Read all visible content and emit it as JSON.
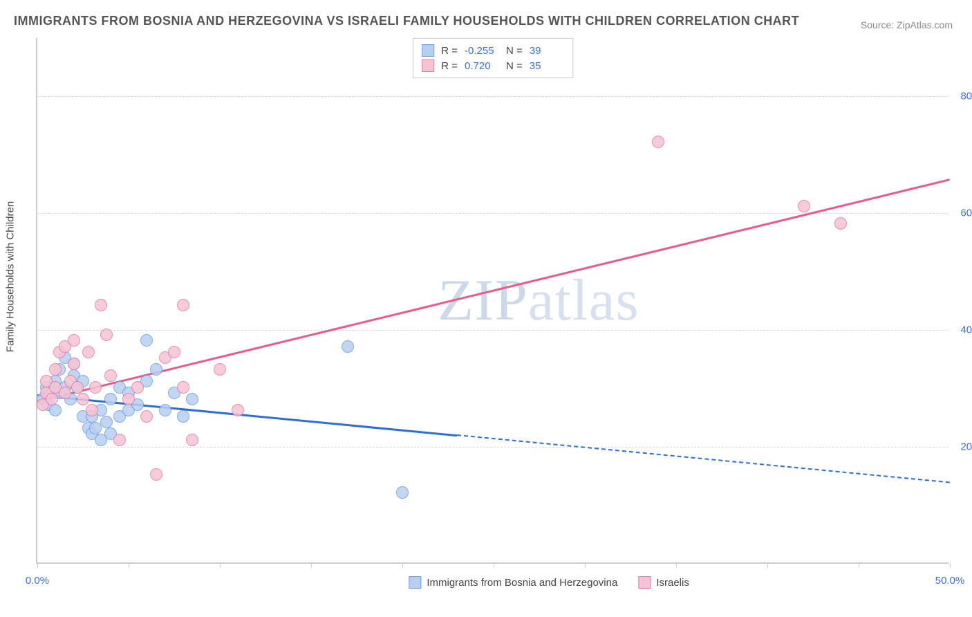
{
  "title": "IMMIGRANTS FROM BOSNIA AND HERZEGOVINA VS ISRAELI FAMILY HOUSEHOLDS WITH CHILDREN CORRELATION CHART",
  "source": "Source: ZipAtlas.com",
  "watermark_a": "ZIP",
  "watermark_b": "atlas",
  "ylabel": "Family Households with Children",
  "chart": {
    "type": "scatter",
    "xlim": [
      0,
      50
    ],
    "ylim": [
      0,
      90
    ],
    "background_color": "#ffffff",
    "grid_color": "#d8d8d8",
    "axis_color": "#cccccc",
    "tick_color": "#3b6fd6",
    "xticks": [
      0,
      5,
      10,
      15,
      20,
      25,
      30,
      35,
      40,
      45,
      50
    ],
    "xtick_labels": {
      "0": "0.0%",
      "50": "50.0%"
    },
    "yticks": [
      20,
      40,
      60,
      80
    ],
    "ytick_labels": {
      "20": "20.0%",
      "40": "40.0%",
      "60": "60.0%",
      "80": "80.0%"
    },
    "series": [
      {
        "key": "bosnia",
        "label": "Immigrants from Bosnia and Herzegovina",
        "R": "-0.255",
        "N": "39",
        "marker_fill": "#b8d0f0",
        "marker_stroke": "#6a9de8",
        "line_color": "#2e6cd6",
        "marker_size": 18,
        "trend": {
          "x1": 0,
          "y1": 29,
          "x2": 50,
          "y2": 14,
          "solid_until_x": 23
        },
        "points": [
          [
            0.3,
            28
          ],
          [
            0.5,
            30
          ],
          [
            0.6,
            27
          ],
          [
            0.8,
            29
          ],
          [
            1.0,
            31
          ],
          [
            1.0,
            26
          ],
          [
            1.2,
            29
          ],
          [
            1.2,
            33
          ],
          [
            1.5,
            30
          ],
          [
            1.5,
            35
          ],
          [
            1.8,
            28
          ],
          [
            2.0,
            34
          ],
          [
            2.0,
            32
          ],
          [
            2.2,
            30
          ],
          [
            2.5,
            31
          ],
          [
            2.5,
            25
          ],
          [
            2.8,
            23
          ],
          [
            3.0,
            25
          ],
          [
            3.0,
            22
          ],
          [
            3.2,
            23
          ],
          [
            3.5,
            21
          ],
          [
            3.5,
            26
          ],
          [
            3.8,
            24
          ],
          [
            4.0,
            22
          ],
          [
            4.0,
            28
          ],
          [
            4.5,
            25
          ],
          [
            4.5,
            30
          ],
          [
            5.0,
            26
          ],
          [
            5.0,
            29
          ],
          [
            5.5,
            27
          ],
          [
            6.0,
            31
          ],
          [
            6.0,
            38
          ],
          [
            6.5,
            33
          ],
          [
            7.0,
            26
          ],
          [
            7.5,
            29
          ],
          [
            8.0,
            25
          ],
          [
            8.5,
            28
          ],
          [
            17.0,
            37
          ],
          [
            20.0,
            12
          ]
        ]
      },
      {
        "key": "israelis",
        "label": "Israelis",
        "R": "0.720",
        "N": "35",
        "marker_fill": "#f5c4d4",
        "marker_stroke": "#e87aa0",
        "line_color": "#e85a8a",
        "marker_size": 18,
        "trend": {
          "x1": 0,
          "y1": 28,
          "x2": 50,
          "y2": 66,
          "solid_until_x": 50
        },
        "points": [
          [
            0.3,
            27
          ],
          [
            0.5,
            29
          ],
          [
            0.5,
            31
          ],
          [
            0.8,
            28
          ],
          [
            1.0,
            30
          ],
          [
            1.0,
            33
          ],
          [
            1.2,
            36
          ],
          [
            1.5,
            29
          ],
          [
            1.5,
            37
          ],
          [
            1.8,
            31
          ],
          [
            2.0,
            34
          ],
          [
            2.0,
            38
          ],
          [
            2.2,
            30
          ],
          [
            2.5,
            28
          ],
          [
            2.8,
            36
          ],
          [
            3.0,
            26
          ],
          [
            3.2,
            30
          ],
          [
            3.5,
            44
          ],
          [
            3.8,
            39
          ],
          [
            4.0,
            32
          ],
          [
            4.5,
            21
          ],
          [
            5.0,
            28
          ],
          [
            5.5,
            30
          ],
          [
            6.0,
            25
          ],
          [
            6.5,
            15
          ],
          [
            7.0,
            35
          ],
          [
            7.5,
            36
          ],
          [
            8.0,
            30
          ],
          [
            8.0,
            44
          ],
          [
            8.5,
            21
          ],
          [
            10.0,
            33
          ],
          [
            11.0,
            26
          ],
          [
            34.0,
            72
          ],
          [
            42.0,
            61
          ],
          [
            44.0,
            58
          ]
        ]
      }
    ]
  }
}
